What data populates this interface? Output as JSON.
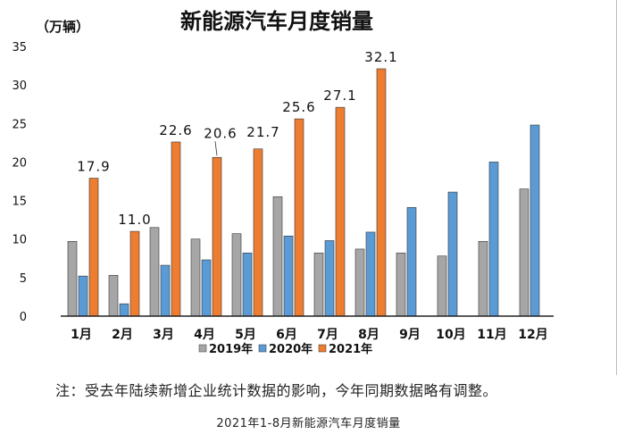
{
  "chart_data": {
    "type": "bar",
    "title": "新能源汽车月度销量",
    "unit_label": "（万辆）",
    "categories": [
      "1月",
      "2月",
      "3月",
      "4月",
      "5月",
      "6月",
      "7月",
      "8月",
      "9月",
      "10月",
      "11月",
      "12月"
    ],
    "series": [
      {
        "name": "2019年",
        "color": "#a6a6a6",
        "values": [
          9.7,
          5.3,
          11.5,
          10.0,
          10.7,
          15.5,
          8.2,
          8.7,
          8.2,
          7.8,
          9.7,
          16.5
        ]
      },
      {
        "name": "2020年",
        "color": "#5b9bd5",
        "values": [
          5.2,
          1.6,
          6.6,
          7.3,
          8.2,
          10.4,
          9.8,
          10.9,
          14.1,
          16.1,
          20.0,
          24.8
        ]
      },
      {
        "name": "2021年",
        "color": "#ed7d31",
        "values": [
          17.9,
          11.0,
          22.6,
          20.6,
          21.7,
          25.6,
          27.1,
          32.1,
          null,
          null,
          null,
          null
        ]
      }
    ],
    "data_labels_2021": [
      "17.9",
      "11.0",
      "22.6",
      "20.6",
      "21.7",
      "25.6",
      "27.1",
      "32.1"
    ],
    "yticks": [
      "0",
      "5",
      "10",
      "15",
      "20",
      "25",
      "30",
      "35"
    ],
    "ylim": [
      0,
      35
    ],
    "legend_position": "bottom-center",
    "grid": false
  },
  "note": "注：受去年陆续新增企业统计数据的影响，今年同期数据略有调整。",
  "caption": "2021年1-8月新能源汽车月度销量"
}
